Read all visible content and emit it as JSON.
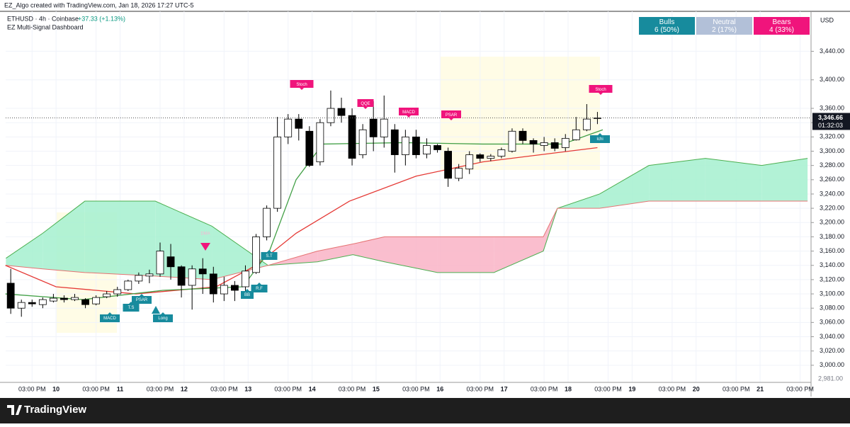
{
  "header": "EZ_Algo created with TradingView.com, Jan 18, 2026 17:27 UTC-5",
  "footer": "TradingView",
  "dashboard": [
    {
      "title": "Bulls",
      "value": "6 (50%)",
      "color": "#178b9d"
    },
    {
      "title": "Neutral",
      "value": "2 (17%)",
      "color": "#b2c0d8"
    },
    {
      "title": "Bears",
      "value": "4 (33%)",
      "color": "#f0147c"
    }
  ],
  "chart_data": {
    "type": "candlestick",
    "title": "ETHUSD · 4h · Coinbase",
    "change": "+37.33 (+1.13%)",
    "subtitle": "EZ Multi-Signal Dashboard",
    "currency": "USD",
    "last_price": {
      "value": 3346.66,
      "label": "3,346.66"
    },
    "countdown": "01:32:03",
    "low_label": {
      "value": 2981,
      "label": "2,981.00"
    },
    "ylim": [
      2976,
      3496
    ],
    "yticks": [
      {
        "value": 3000,
        "label": "3,000.00"
      },
      {
        "value": 3020,
        "label": "3,020.00"
      },
      {
        "value": 3040,
        "label": "3,040.00"
      },
      {
        "value": 3060,
        "label": "3,060.00"
      },
      {
        "value": 3080,
        "label": "3,080.00"
      },
      {
        "value": 3100,
        "label": "3,100.00"
      },
      {
        "value": 3120,
        "label": "3,120.00"
      },
      {
        "value": 3140,
        "label": "3,140.00"
      },
      {
        "value": 3160,
        "label": "3,160.00"
      },
      {
        "value": 3180,
        "label": "3,180.00"
      },
      {
        "value": 3200,
        "label": "3,200.00"
      },
      {
        "value": 3220,
        "label": "3,220.00"
      },
      {
        "value": 3240,
        "label": "3,240.00"
      },
      {
        "value": 3260,
        "label": "3,260.00"
      },
      {
        "value": 3280,
        "label": "3,280.00"
      },
      {
        "value": 3300,
        "label": "3,300.00"
      },
      {
        "value": 3320,
        "label": "3,320.00"
      },
      {
        "value": 3340,
        "label": "3,340.00"
      },
      {
        "value": 3360,
        "label": "3,360.00"
      },
      {
        "value": 3400,
        "label": "3,400.00"
      },
      {
        "value": 3440,
        "label": "3,440.00"
      }
    ],
    "xlim": [
      -18.9,
      283.1
    ],
    "xticks": [
      {
        "value": -9,
        "label": "03:00 PM"
      },
      {
        "value": 0,
        "label": "10"
      },
      {
        "value": 15,
        "label": "03:00 PM"
      },
      {
        "value": 24,
        "label": "11"
      },
      {
        "value": 39,
        "label": "03:00 PM"
      },
      {
        "value": 48,
        "label": "12"
      },
      {
        "value": 63,
        "label": "03:00 PM"
      },
      {
        "value": 72,
        "label": "13"
      },
      {
        "value": 87,
        "label": "03:00 PM"
      },
      {
        "value": 96,
        "label": "14"
      },
      {
        "value": 111,
        "label": "03:00 PM"
      },
      {
        "value": 120,
        "label": "15"
      },
      {
        "value": 135,
        "label": "03:00 PM"
      },
      {
        "value": 144,
        "label": "16"
      },
      {
        "value": 159,
        "label": "03:00 PM"
      },
      {
        "value": 168,
        "label": "17"
      },
      {
        "value": 183,
        "label": "03:00 PM"
      },
      {
        "value": 192,
        "label": "18"
      },
      {
        "value": 207,
        "label": "03:00 PM"
      },
      {
        "value": 216,
        "label": "19"
      },
      {
        "value": 231,
        "label": "03:00 PM"
      },
      {
        "value": 240,
        "label": "20"
      },
      {
        "value": 255,
        "label": "03:00 PM"
      },
      {
        "value": 264,
        "label": "21"
      },
      {
        "value": 279,
        "label": "03:00 PM"
      }
    ],
    "x": [
      -17,
      -13,
      -9,
      -5,
      -1,
      3,
      7,
      11,
      15,
      19,
      23,
      27,
      31,
      35,
      39,
      43,
      47,
      51,
      55,
      59,
      63,
      67,
      71,
      75,
      79,
      83,
      87,
      91,
      95,
      99,
      103,
      107,
      111,
      115,
      119,
      123,
      127,
      131,
      135,
      139,
      143,
      147,
      151,
      155,
      159,
      163,
      167,
      171,
      175,
      179,
      183,
      187,
      191,
      195,
      199,
      203
    ],
    "open": [
      3115,
      3080,
      3088,
      3085,
      3090,
      3094,
      3092,
      3092,
      3086,
      3096,
      3100,
      3106,
      3118,
      3125,
      3128,
      3152,
      3138,
      3112,
      3135,
      3128,
      3100,
      3112,
      3110,
      3130,
      3180,
      3220,
      3320,
      3345,
      3328,
      3285,
      3340,
      3360,
      3350,
      3295,
      3345,
      3320,
      3330,
      3295,
      3320,
      3296,
      3308,
      3300,
      3262,
      3275,
      3295,
      3290,
      3293,
      3300,
      3328,
      3315,
      3308,
      3312,
      3305,
      3316,
      3330,
      3346
    ],
    "high": [
      3135,
      3092,
      3092,
      3095,
      3100,
      3098,
      3100,
      3094,
      3098,
      3104,
      3110,
      3120,
      3130,
      3134,
      3172,
      3170,
      3140,
      3140,
      3150,
      3138,
      3124,
      3118,
      3140,
      3184,
      3224,
      3348,
      3352,
      3352,
      3335,
      3345,
      3385,
      3375,
      3360,
      3338,
      3370,
      3378,
      3338,
      3330,
      3330,
      3318,
      3310,
      3305,
      3282,
      3300,
      3297,
      3296,
      3305,
      3332,
      3332,
      3318,
      3320,
      3318,
      3324,
      3348,
      3366,
      3355
    ],
    "low": [
      3072,
      3068,
      3082,
      3080,
      3088,
      3088,
      3090,
      3080,
      3084,
      3094,
      3096,
      3104,
      3114,
      3115,
      3124,
      3120,
      3095,
      3078,
      3100,
      3088,
      3090,
      3090,
      3100,
      3128,
      3175,
      3215,
      3310,
      3315,
      3278,
      3280,
      3335,
      3340,
      3280,
      3290,
      3300,
      3305,
      3270,
      3280,
      3290,
      3290,
      3298,
      3250,
      3258,
      3268,
      3285,
      3286,
      3290,
      3298,
      3310,
      3298,
      3300,
      3300,
      3300,
      3315,
      3328,
      3338
    ],
    "close": [
      3080,
      3088,
      3086,
      3092,
      3094,
      3092,
      3095,
      3085,
      3095,
      3100,
      3106,
      3118,
      3126,
      3128,
      3160,
      3138,
      3112,
      3135,
      3128,
      3100,
      3112,
      3105,
      3132,
      3180,
      3220,
      3320,
      3345,
      3332,
      3280,
      3340,
      3360,
      3350,
      3290,
      3330,
      3320,
      3345,
      3295,
      3320,
      3295,
      3308,
      3302,
      3262,
      3276,
      3295,
      3290,
      3293,
      3302,
      3328,
      3315,
      3310,
      3312,
      3304,
      3318,
      3330,
      3345,
      3346.66
    ],
    "lines": [
      {
        "color": "#e53935",
        "x": [
          -19,
          0,
          30,
          60,
          75,
          90,
          110,
          135,
          160,
          203
        ],
        "values": [
          3140,
          3110,
          3100,
          3110,
          3140,
          3185,
          3230,
          3265,
          3285,
          3305
        ]
      },
      {
        "color": "#43a047",
        "x": [
          -19,
          10,
          40,
          70,
          80,
          90,
          100,
          130,
          160,
          190,
          205
        ],
        "values": [
          3100,
          3092,
          3105,
          3110,
          3160,
          3260,
          3310,
          3312,
          3310,
          3310,
          3330
        ]
      }
    ],
    "cloud": {
      "x": [
        -18.8,
        -5,
        10.8,
        37.2,
        58.4,
        79.5,
        98,
        111.3,
        123.2,
        143,
        164.2,
        182.7,
        188,
        203.8,
        222.3,
        243.5,
        264.6,
        281.8
      ],
      "span_a": [
        3150,
        3185,
        3230,
        3230,
        3195,
        3140,
        3145,
        3155,
        3145,
        3130,
        3130,
        3160,
        3220,
        3240,
        3280,
        3290,
        3280,
        3290
      ],
      "span_b": [
        3140,
        3135,
        3130,
        3125,
        3120,
        3140,
        3160,
        3170,
        3180,
        3180,
        3180,
        3180,
        3220,
        3220,
        3230,
        3230,
        3230,
        3230
      ],
      "bull_color": "#a5f0cf",
      "bear_color": "#f9b3c5"
    },
    "signals": [
      {
        "text": "Stoch",
        "color": "#f0147c"
      },
      {
        "text": "QQE",
        "color": "#f0147c"
      },
      {
        "text": "MACD",
        "color": "#f0147c"
      },
      {
        "text": "PSAR",
        "color": "#f0147c"
      },
      {
        "text": "Stoch",
        "color": "#f0147c"
      },
      {
        "text": "Ichi",
        "color": "#178b9d"
      },
      {
        "text": "S.T",
        "color": "#178b9d"
      },
      {
        "text": "R.F",
        "color": "#178b9d"
      },
      {
        "text": "BB",
        "color": "#178b9d"
      },
      {
        "text": "PSAR",
        "color": "#178b9d"
      },
      {
        "text": "T.S",
        "color": "#178b9d"
      },
      {
        "text": "MACD",
        "color": "#178b9d"
      },
      {
        "text": "Long",
        "color": "#178b9d"
      },
      {
        "text": "DMA",
        "color": "#f0147c"
      }
    ]
  }
}
